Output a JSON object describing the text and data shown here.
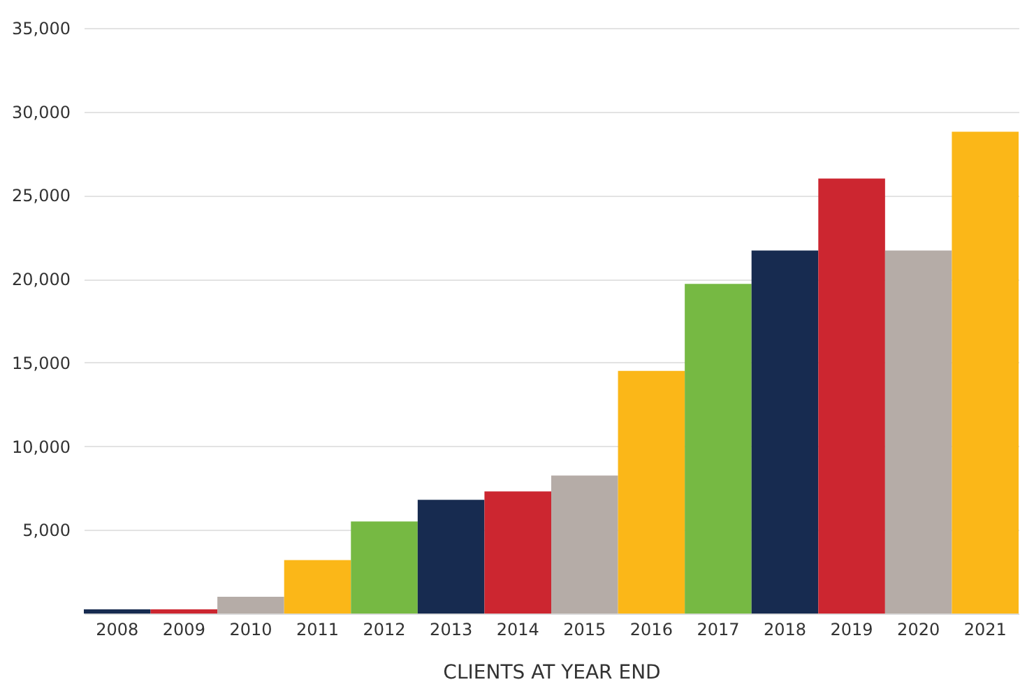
{
  "chart_data": {
    "type": "bar",
    "xlabel": "CLIENTS AT YEAR END",
    "categories": [
      "2008",
      "2009",
      "2010",
      "2011",
      "2012",
      "2013",
      "2014",
      "2015",
      "2016",
      "2017",
      "2018",
      "2019",
      "2020",
      "2021"
    ],
    "values": [
      250,
      250,
      1000,
      3200,
      5500,
      6800,
      7300,
      8250,
      14500,
      19700,
      21700,
      26000,
      21700,
      28800
    ],
    "colors": [
      "#172b50",
      "#cc2630",
      "#b5aca7",
      "#fbb718",
      "#76b943",
      "#172b50",
      "#cc2630",
      "#b5aca7",
      "#fbb718",
      "#76b943",
      "#172b50",
      "#cc2630",
      "#b5aca7",
      "#fbb718"
    ],
    "ylim": [
      0,
      35000
    ],
    "yticks": [
      {
        "value": 5000,
        "label": "5,000"
      },
      {
        "value": 10000,
        "label": "10,000"
      },
      {
        "value": 15000,
        "label": "15,000"
      },
      {
        "value": 20000,
        "label": "20,000"
      },
      {
        "value": 25000,
        "label": "25,000"
      },
      {
        "value": 30000,
        "label": "30,000"
      },
      {
        "value": 35000,
        "label": "35,000"
      }
    ],
    "grid": "y"
  }
}
